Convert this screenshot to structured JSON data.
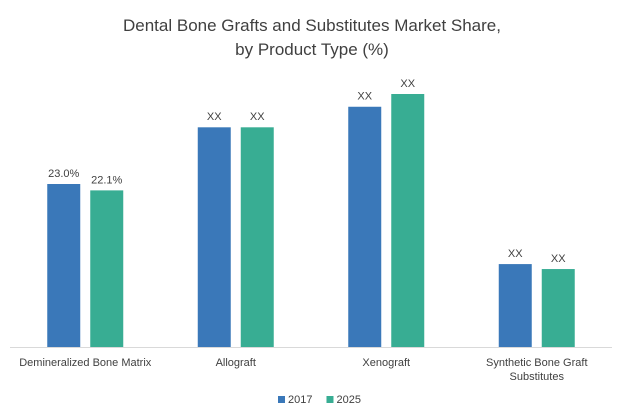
{
  "chart_data": {
    "type": "bar",
    "title": "Dental Bone Grafts and Substitutes Market Share,\nby Product Type (%)",
    "categories": [
      "Demineralized Bone Matrix",
      "Allograft",
      "Xenograft",
      "Synthetic Bone Graft\nSubstitutes"
    ],
    "series": [
      {
        "name": "2017",
        "color": "#3a78b9",
        "values": [
          23.0,
          31.0,
          33.9,
          11.7
        ],
        "value_labels": [
          "23.0%",
          "XX",
          "XX",
          "XX"
        ]
      },
      {
        "name": "2025",
        "color": "#38ad93",
        "values": [
          22.1,
          31.0,
          35.7,
          11.0
        ],
        "value_labels": [
          "22.1%",
          "XX",
          "XX",
          "XX"
        ]
      }
    ],
    "legend": "bottom"
  }
}
